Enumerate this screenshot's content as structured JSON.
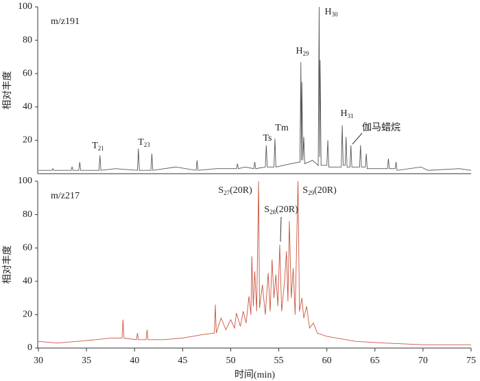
{
  "chart_data": [
    {
      "type": "line",
      "label": "m/z191",
      "ylabel": "相对丰度",
      "xlim": [
        30,
        75
      ],
      "ylim": [
        0,
        100
      ],
      "yticks": [
        20,
        40,
        60,
        80,
        100
      ],
      "series": [
        {
          "color": "#555555",
          "x": [
            30,
            31.4,
            31.5,
            31.6,
            33.4,
            33.5,
            33.6,
            34.2,
            34.3,
            34.4,
            36.3,
            36.4,
            36.5,
            38,
            40.3,
            40.4,
            40.5,
            41.7,
            41.8,
            41.9,
            44.3,
            46.4,
            46.5,
            46.6,
            48.5,
            50.6,
            50.7,
            50.8,
            51.5,
            52.4,
            52.5,
            52.6,
            53.6,
            53.7,
            53.8,
            54.5,
            54.6,
            54.7,
            55.5,
            56.3,
            57.2,
            57.3,
            57.35,
            57.4,
            57.5,
            57.6,
            57.7,
            58.5,
            59.1,
            59.2,
            59.25,
            59.3,
            59.4,
            60,
            60.1,
            60.2,
            61.5,
            61.6,
            61.7,
            61.9,
            62,
            62.1,
            62.4,
            62.5,
            62.6,
            63.4,
            63.5,
            63.6,
            64,
            64.1,
            64.2,
            66.3,
            66.4,
            66.5,
            67.1,
            67.2,
            67.3,
            69.8,
            70.5,
            73.8,
            75
          ],
          "values": [
            2,
            2,
            3,
            2,
            2,
            4,
            2,
            2,
            7,
            2,
            2,
            11,
            2,
            3,
            2,
            15,
            2,
            2,
            12,
            2,
            4,
            2,
            8,
            2,
            3,
            3,
            6,
            3,
            4,
            3,
            7,
            3,
            4,
            17,
            4,
            4,
            21,
            4,
            5,
            6,
            7,
            67,
            8,
            55,
            8,
            22,
            6,
            8,
            5,
            100,
            10,
            68,
            5,
            5,
            20,
            4,
            4,
            29,
            5,
            5,
            22,
            4,
            4,
            17,
            4,
            4,
            17,
            4,
            4,
            12,
            3,
            3,
            9,
            3,
            3,
            7,
            2,
            4,
            2,
            3,
            2
          ]
        }
      ],
      "annotations": [
        {
          "base": "T",
          "sub": "21"
        },
        {
          "base": "T",
          "sub": "23"
        },
        {
          "base": "Ts"
        },
        {
          "base": "Tm"
        },
        {
          "base": "H",
          "sub": "29"
        },
        {
          "base": "H",
          "sub": "30"
        },
        {
          "base": "H",
          "sub": "31"
        },
        {
          "base": "伽马蜡烷"
        }
      ]
    },
    {
      "type": "line",
      "label": "m/z217",
      "ylabel": "相对丰度",
      "xlabel": "时间(min)",
      "xlim": [
        30,
        75
      ],
      "xticks": [
        30,
        35,
        40,
        45,
        50,
        55,
        60,
        65,
        70,
        75
      ],
      "ylim": [
        0,
        100
      ],
      "yticks": [
        0,
        20,
        40,
        60,
        80,
        100
      ],
      "series": [
        {
          "color": "#c8553d",
          "x": [
            30,
            32,
            34,
            36,
            37.5,
            38.7,
            38.8,
            38.9,
            40.2,
            40.3,
            40.4,
            41.2,
            41.3,
            41.4,
            43,
            45,
            47,
            48.3,
            48.4,
            48.5,
            49,
            49.5,
            50,
            50.4,
            50.6,
            51,
            51.3,
            51.6,
            51.9,
            52.1,
            52.2,
            52.35,
            52.5,
            52.7,
            52.9,
            53,
            53.3,
            53.6,
            53.9,
            54.1,
            54.3,
            54.5,
            54.7,
            54.9,
            55.1,
            55.3,
            55.6,
            55.8,
            55.95,
            56.1,
            56.3,
            56.5,
            56.7,
            57,
            57.15,
            57.4,
            57.6,
            57.9,
            58.2,
            58.6,
            59,
            60,
            61,
            63,
            66,
            70,
            75
          ],
          "values": [
            4,
            3,
            4,
            5,
            6,
            6,
            17,
            6,
            5,
            9,
            5,
            5,
            11,
            5,
            5,
            6,
            8,
            9,
            26,
            9,
            18,
            11,
            17,
            12,
            21,
            13,
            22,
            15,
            31,
            20,
            55,
            25,
            46,
            22,
            100,
            24,
            38,
            20,
            45,
            22,
            53,
            30,
            44,
            25,
            62,
            22,
            40,
            58,
            28,
            76,
            30,
            48,
            20,
            100,
            22,
            30,
            18,
            25,
            12,
            15,
            9,
            7,
            6,
            4,
            3,
            2,
            2
          ]
        }
      ],
      "annotations": [
        {
          "base": "S",
          "sub": "27",
          "suffix": "(20R)"
        },
        {
          "base": "S",
          "sub": "28",
          "suffix": "(20R)"
        },
        {
          "base": "S",
          "sub": "29",
          "suffix": "(20R)"
        }
      ]
    }
  ]
}
